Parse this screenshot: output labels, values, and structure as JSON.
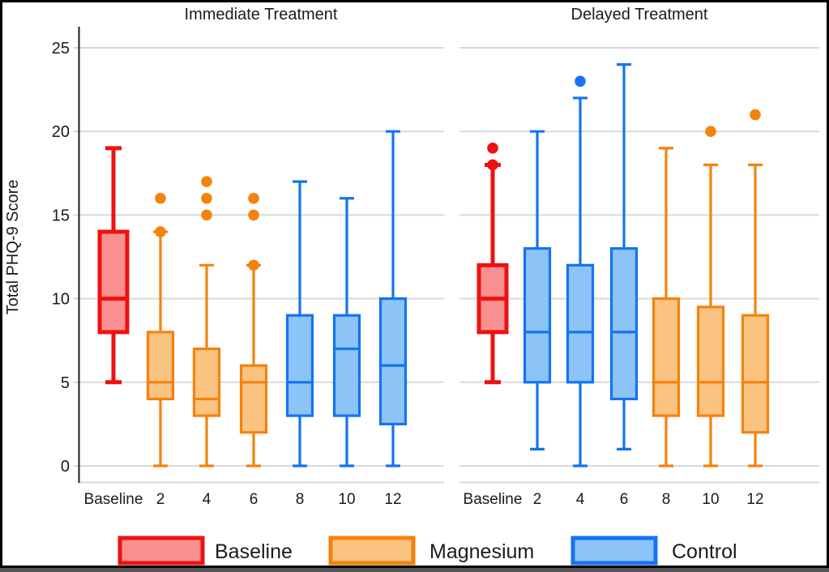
{
  "chart_data": {
    "type": "boxplot",
    "ylabel": "Total PHQ-9 Score",
    "ylim": [
      0,
      25
    ],
    "yticks": [
      0,
      5,
      10,
      15,
      20,
      25
    ],
    "categories": [
      "Baseline",
      "2",
      "4",
      "6",
      "8",
      "10",
      "12"
    ],
    "grid": true,
    "legend_position": "bottom",
    "groups": {
      "Baseline": {
        "border": "#EE1111",
        "fill": "#F9908F"
      },
      "Magnesium": {
        "border": "#F5820D",
        "fill": "#FBC380"
      },
      "Control": {
        "border": "#1574F0",
        "fill": "#8CC4F8"
      }
    },
    "panels": [
      {
        "title": "Immediate Treatment",
        "boxes": [
          {
            "category": "Baseline",
            "group": "Baseline",
            "low": 5,
            "q1": 8,
            "median": 10,
            "q3": 14,
            "high": 19,
            "outliers": []
          },
          {
            "category": "2",
            "group": "Magnesium",
            "low": 0,
            "q1": 4,
            "median": 5,
            "q3": 8,
            "high": 14,
            "outliers": [
              14,
              16
            ]
          },
          {
            "category": "4",
            "group": "Magnesium",
            "low": 0,
            "q1": 3,
            "median": 4,
            "q3": 7,
            "high": 12,
            "outliers": [
              15,
              16,
              17
            ]
          },
          {
            "category": "6",
            "group": "Magnesium",
            "low": 0,
            "q1": 2,
            "median": 5,
            "q3": 6,
            "high": 12,
            "outliers": [
              12,
              15,
              16
            ]
          },
          {
            "category": "8",
            "group": "Control",
            "low": 0,
            "q1": 3,
            "median": 5,
            "q3": 9,
            "high": 17,
            "outliers": []
          },
          {
            "category": "10",
            "group": "Control",
            "low": 0,
            "q1": 3,
            "median": 7,
            "q3": 9,
            "high": 16,
            "outliers": []
          },
          {
            "category": "12",
            "group": "Control",
            "low": 0,
            "q1": 2.5,
            "median": 6,
            "q3": 10,
            "high": 20,
            "outliers": []
          }
        ]
      },
      {
        "title": "Delayed Treatment",
        "boxes": [
          {
            "category": "Baseline",
            "group": "Baseline",
            "low": 5,
            "q1": 8,
            "median": 10,
            "q3": 12,
            "high": 18,
            "outliers": [
              18,
              19
            ]
          },
          {
            "category": "2",
            "group": "Control",
            "low": 1,
            "q1": 5,
            "median": 8,
            "q3": 13,
            "high": 20,
            "outliers": []
          },
          {
            "category": "4",
            "group": "Control",
            "low": 0,
            "q1": 5,
            "median": 8,
            "q3": 12,
            "high": 22,
            "outliers": [
              23
            ]
          },
          {
            "category": "6",
            "group": "Control",
            "low": 1,
            "q1": 4,
            "median": 8,
            "q3": 13,
            "high": 24,
            "outliers": []
          },
          {
            "category": "8",
            "group": "Magnesium",
            "low": 0,
            "q1": 3,
            "median": 5,
            "q3": 10,
            "high": 19,
            "outliers": []
          },
          {
            "category": "10",
            "group": "Magnesium",
            "low": 0,
            "q1": 3,
            "median": 5,
            "q3": 9.5,
            "high": 18,
            "outliers": [
              20
            ]
          },
          {
            "category": "12",
            "group": "Magnesium",
            "low": 0,
            "q1": 2,
            "median": 5,
            "q3": 9,
            "high": 18,
            "outliers": [
              21
            ]
          }
        ]
      }
    ],
    "legend": [
      {
        "label": "Baseline",
        "border": "#EE1111",
        "fill": "#F9908F"
      },
      {
        "label": "Magnesium",
        "border": "#F5820D",
        "fill": "#FBC380"
      },
      {
        "label": "Control",
        "border": "#1574F0",
        "fill": "#8CC4F8"
      }
    ],
    "colors": {
      "background": "#FFFFFF",
      "frame": "#000000",
      "gridline": "#D9D9D9",
      "axis": "#2E2E2E",
      "text": "#1B1B1B"
    }
  }
}
